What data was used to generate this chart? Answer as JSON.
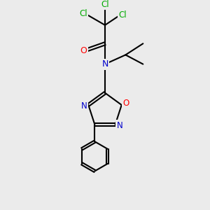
{
  "bg_color": "#ebebeb",
  "bond_color": "#000000",
  "bond_width": 1.5,
  "atom_colors": {
    "Cl": "#00aa00",
    "O_carbonyl": "#ff0000",
    "N": "#0000cc",
    "O_ring": "#ff0000"
  },
  "figsize": [
    3.0,
    3.0
  ],
  "dpi": 100,
  "xlim": [
    0,
    10
  ],
  "ylim": [
    0,
    10
  ]
}
